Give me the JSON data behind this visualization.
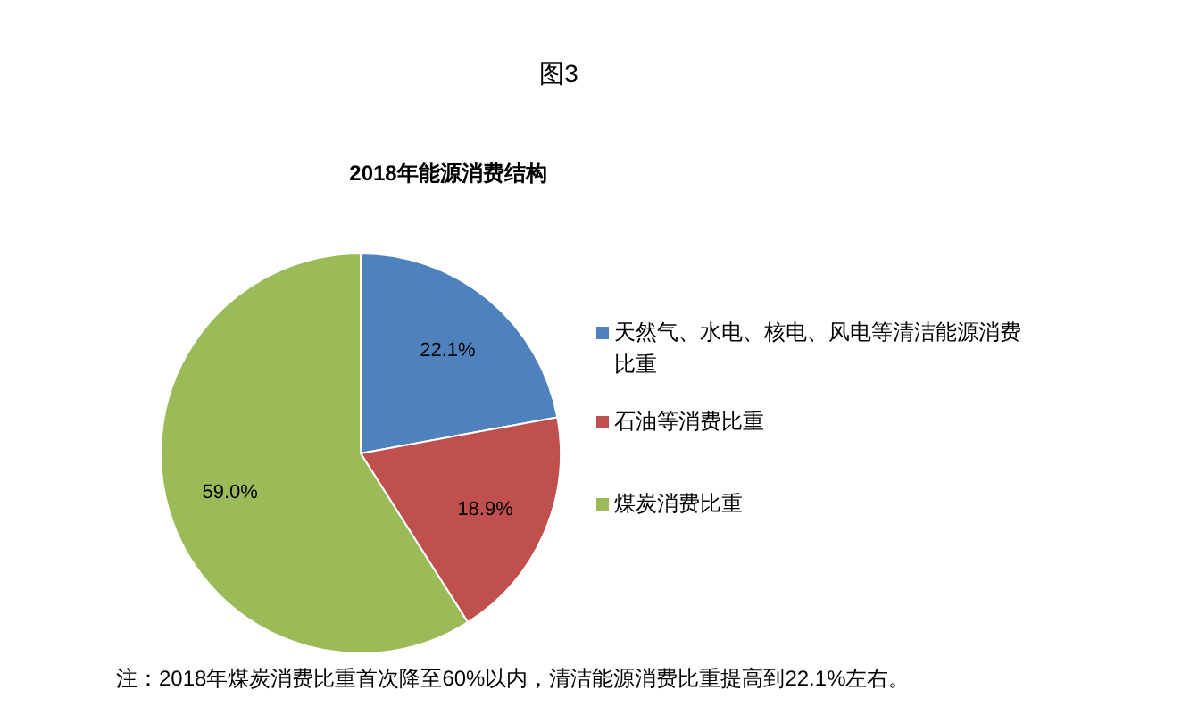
{
  "chart_data": {
    "type": "pie",
    "title": "图3",
    "subtitle": "2018年能源消费结构",
    "categories": [
      "天然气、水电、核电、风电等清洁能源消费比重",
      "石油等消费比重",
      "煤炭消费比重"
    ],
    "values": [
      22.1,
      18.9,
      59.0
    ],
    "value_labels": [
      "22.1%",
      "18.9%",
      "59.0%"
    ],
    "colors": [
      "#4f81bd",
      "#c0504d",
      "#9bbb59"
    ],
    "legend": "right",
    "annotations": [
      "注：2018年煤炭消费比重首次降至60%以内，清洁能源消费比重提高到22.1%左右。"
    ]
  }
}
